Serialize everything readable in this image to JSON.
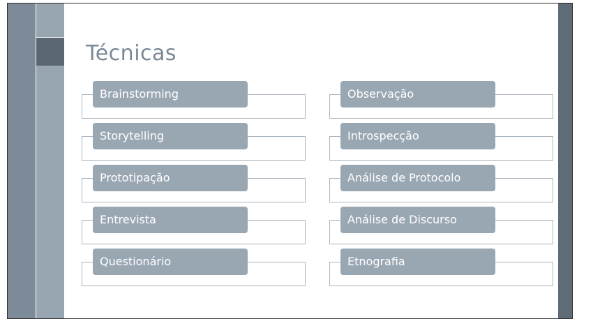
{
  "slide": {
    "title": "Técnicas",
    "left_column": [
      {
        "label": "Brainstorming"
      },
      {
        "label": "Storytelling"
      },
      {
        "label": "Prototipação"
      },
      {
        "label": "Entrevista"
      },
      {
        "label": "Questionário"
      }
    ],
    "right_column": [
      {
        "label": "Observação"
      },
      {
        "label": "Introspecção"
      },
      {
        "label": "Análise de Protocolo"
      },
      {
        "label": "Análise de Discurso"
      },
      {
        "label": "Etnografia"
      }
    ]
  },
  "colors": {
    "pill": "#99a7b3",
    "title": "#7a8896",
    "left_band_dark": "#7d8b99",
    "left_band_light": "#98a6b2",
    "accent_block": "#5a6672",
    "right_band": "#5f6b77"
  }
}
